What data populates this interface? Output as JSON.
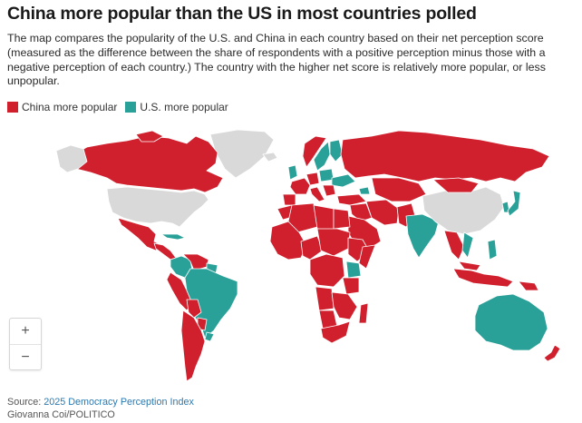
{
  "title": "China more popular than the US in most countries polled",
  "subtitle": "The map compares the popularity of the U.S. and China in each country based on their net perception score (measured as the difference between the share of respondents with a positive perception minus those with a negative perception of each country.) The country with the higher net score is relatively more popular, or less unpopular.",
  "legend": [
    {
      "label": "China more popular",
      "color": "#d0202e"
    },
    {
      "label": "U.S. more popular",
      "color": "#2aa198"
    }
  ],
  "colors": {
    "china": "#d0202e",
    "us": "#2aa198",
    "not_polled": "#d9d9d9"
  },
  "zoom": {
    "in_label": "+",
    "out_label": "−"
  },
  "footer": {
    "source_prefix": "Source: ",
    "source_link": "2025 Democracy Perception Index",
    "credit": "Giovanna Coi/POLITICO"
  }
}
